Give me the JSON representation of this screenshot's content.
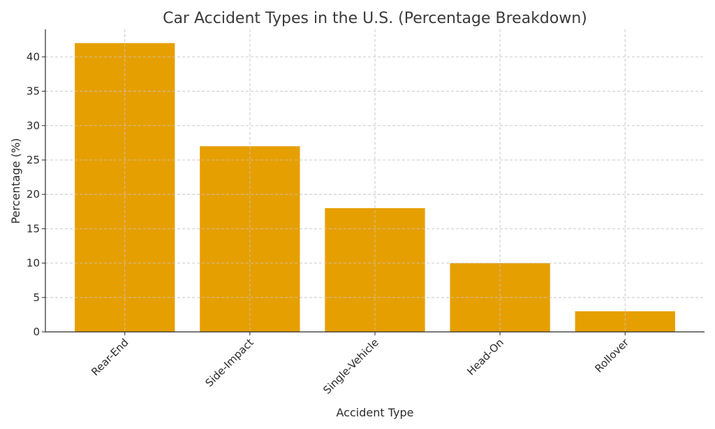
{
  "chart_data": {
    "type": "bar",
    "title": "Car Accident Types in the U.S. (Percentage Breakdown)",
    "xlabel": "Accident Type",
    "ylabel": "Percentage (%)",
    "categories": [
      "Rear-End",
      "Side-Impact",
      "Single-Vehicle",
      "Head-On",
      "Rollover"
    ],
    "values": [
      42,
      27,
      18,
      10,
      3
    ],
    "ylim": [
      0,
      44
    ],
    "yticks": [
      0,
      5,
      10,
      15,
      20,
      25,
      30,
      35,
      40
    ],
    "grid": true,
    "bar_color": "#E69F00",
    "x_tick_rotation": 45
  }
}
